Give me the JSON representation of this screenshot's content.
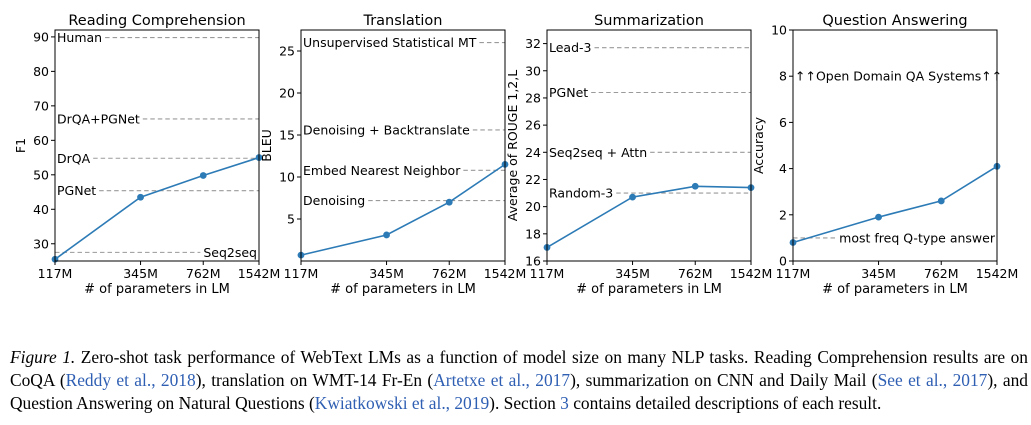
{
  "chart_data": [
    {
      "type": "line",
      "title": "Reading Comprehension",
      "xlabel": "# of parameters in LM",
      "ylabel": "F1",
      "categories": [
        "117M",
        "345M",
        "762M",
        "1542M"
      ],
      "x": [
        117,
        345,
        762,
        1542
      ],
      "values": [
        25.5,
        43.5,
        49.8,
        55.0
      ],
      "ylim": [
        25,
        92
      ],
      "yticks": [
        30,
        40,
        50,
        60,
        70,
        80,
        90
      ],
      "color": "#2d7bb6",
      "baselines": [
        {
          "label": "Human",
          "value": 89.8,
          "label_align": "left"
        },
        {
          "label": "DrQA+PGNet",
          "value": 66.2,
          "label_align": "left"
        },
        {
          "label": "DrQA",
          "value": 54.8,
          "label_align": "left"
        },
        {
          "label": "PGNet",
          "value": 45.4,
          "label_align": "left"
        },
        {
          "label": "Seq2seq",
          "value": 27.5,
          "label_align": "right"
        }
      ]
    },
    {
      "type": "line",
      "title": "Translation",
      "xlabel": "# of parameters in LM",
      "ylabel": "BLEU",
      "categories": [
        "117M",
        "345M",
        "762M",
        "1542M"
      ],
      "x": [
        117,
        345,
        762,
        1542
      ],
      "values": [
        0.7,
        3.1,
        7.0,
        11.5
      ],
      "ylim": [
        0,
        27.5
      ],
      "yticks": [
        5,
        10,
        15,
        20,
        25
      ],
      "color": "#2d7bb6",
      "baselines": [
        {
          "label": "Unsupervised Statistical MT",
          "value": 26.0,
          "label_align": "left"
        },
        {
          "label": "Denoising + Backtranslate",
          "value": 15.6,
          "label_align": "left"
        },
        {
          "label": "Embed Nearest Neighbor",
          "value": 10.8,
          "label_align": "left"
        },
        {
          "label": "Denoising",
          "value": 7.2,
          "label_align": "left"
        }
      ]
    },
    {
      "type": "line",
      "title": "Summarization",
      "xlabel": "# of parameters in LM",
      "ylabel": "Average of ROUGE 1,2,L",
      "categories": [
        "117M",
        "345M",
        "762M",
        "1542M"
      ],
      "x": [
        117,
        345,
        762,
        1542
      ],
      "values": [
        17.0,
        20.7,
        21.5,
        21.4
      ],
      "ylim": [
        16,
        33
      ],
      "yticks": [
        16,
        18,
        20,
        22,
        24,
        26,
        28,
        30,
        32
      ],
      "color": "#2d7bb6",
      "baselines": [
        {
          "label": "Lead-3",
          "value": 31.7,
          "label_align": "left"
        },
        {
          "label": "PGNet",
          "value": 28.4,
          "label_align": "left"
        },
        {
          "label": "Seq2seq + Attn",
          "value": 24.0,
          "label_align": "left"
        },
        {
          "label": "Random-3",
          "value": 21.0,
          "label_align": "left"
        }
      ]
    },
    {
      "type": "line",
      "title": "Question Answering",
      "xlabel": "# of parameters in LM",
      "ylabel": "Accuracy",
      "categories": [
        "117M",
        "345M",
        "762M",
        "1542M"
      ],
      "x": [
        117,
        345,
        762,
        1542
      ],
      "values": [
        0.8,
        1.9,
        2.6,
        4.1
      ],
      "ylim": [
        0,
        10
      ],
      "yticks": [
        0,
        2,
        4,
        6,
        8,
        10
      ],
      "color": "#2d7bb6",
      "baselines": [
        {
          "label": "↑↑Open Domain QA Systems↑↑",
          "value": 8.0,
          "label_align": "left",
          "show_line": false
        },
        {
          "label": "most freq Q-type answer",
          "value": 1.0,
          "label_align": "right"
        }
      ]
    }
  ],
  "caption": {
    "label": "Figure 1.",
    "text_1": " Zero-shot task performance of WebText LMs as a function of model size on many NLP tasks. Reading Comprehension results are on CoQA (",
    "ref_1": "Reddy et al., 2018",
    "text_2": "), translation on WMT-14 Fr-En (",
    "ref_2": "Artetxe et al., 2017",
    "text_3": "), summarization on CNN and Daily Mail (",
    "ref_3": "See et al., 2017",
    "text_4": "), and Question Answering on Natural Questions (",
    "ref_4": "Kwiatkowski et al., 2019",
    "text_5": "). Section ",
    "ref_5": "3",
    "text_6": " contains detailed descriptions of each result."
  }
}
